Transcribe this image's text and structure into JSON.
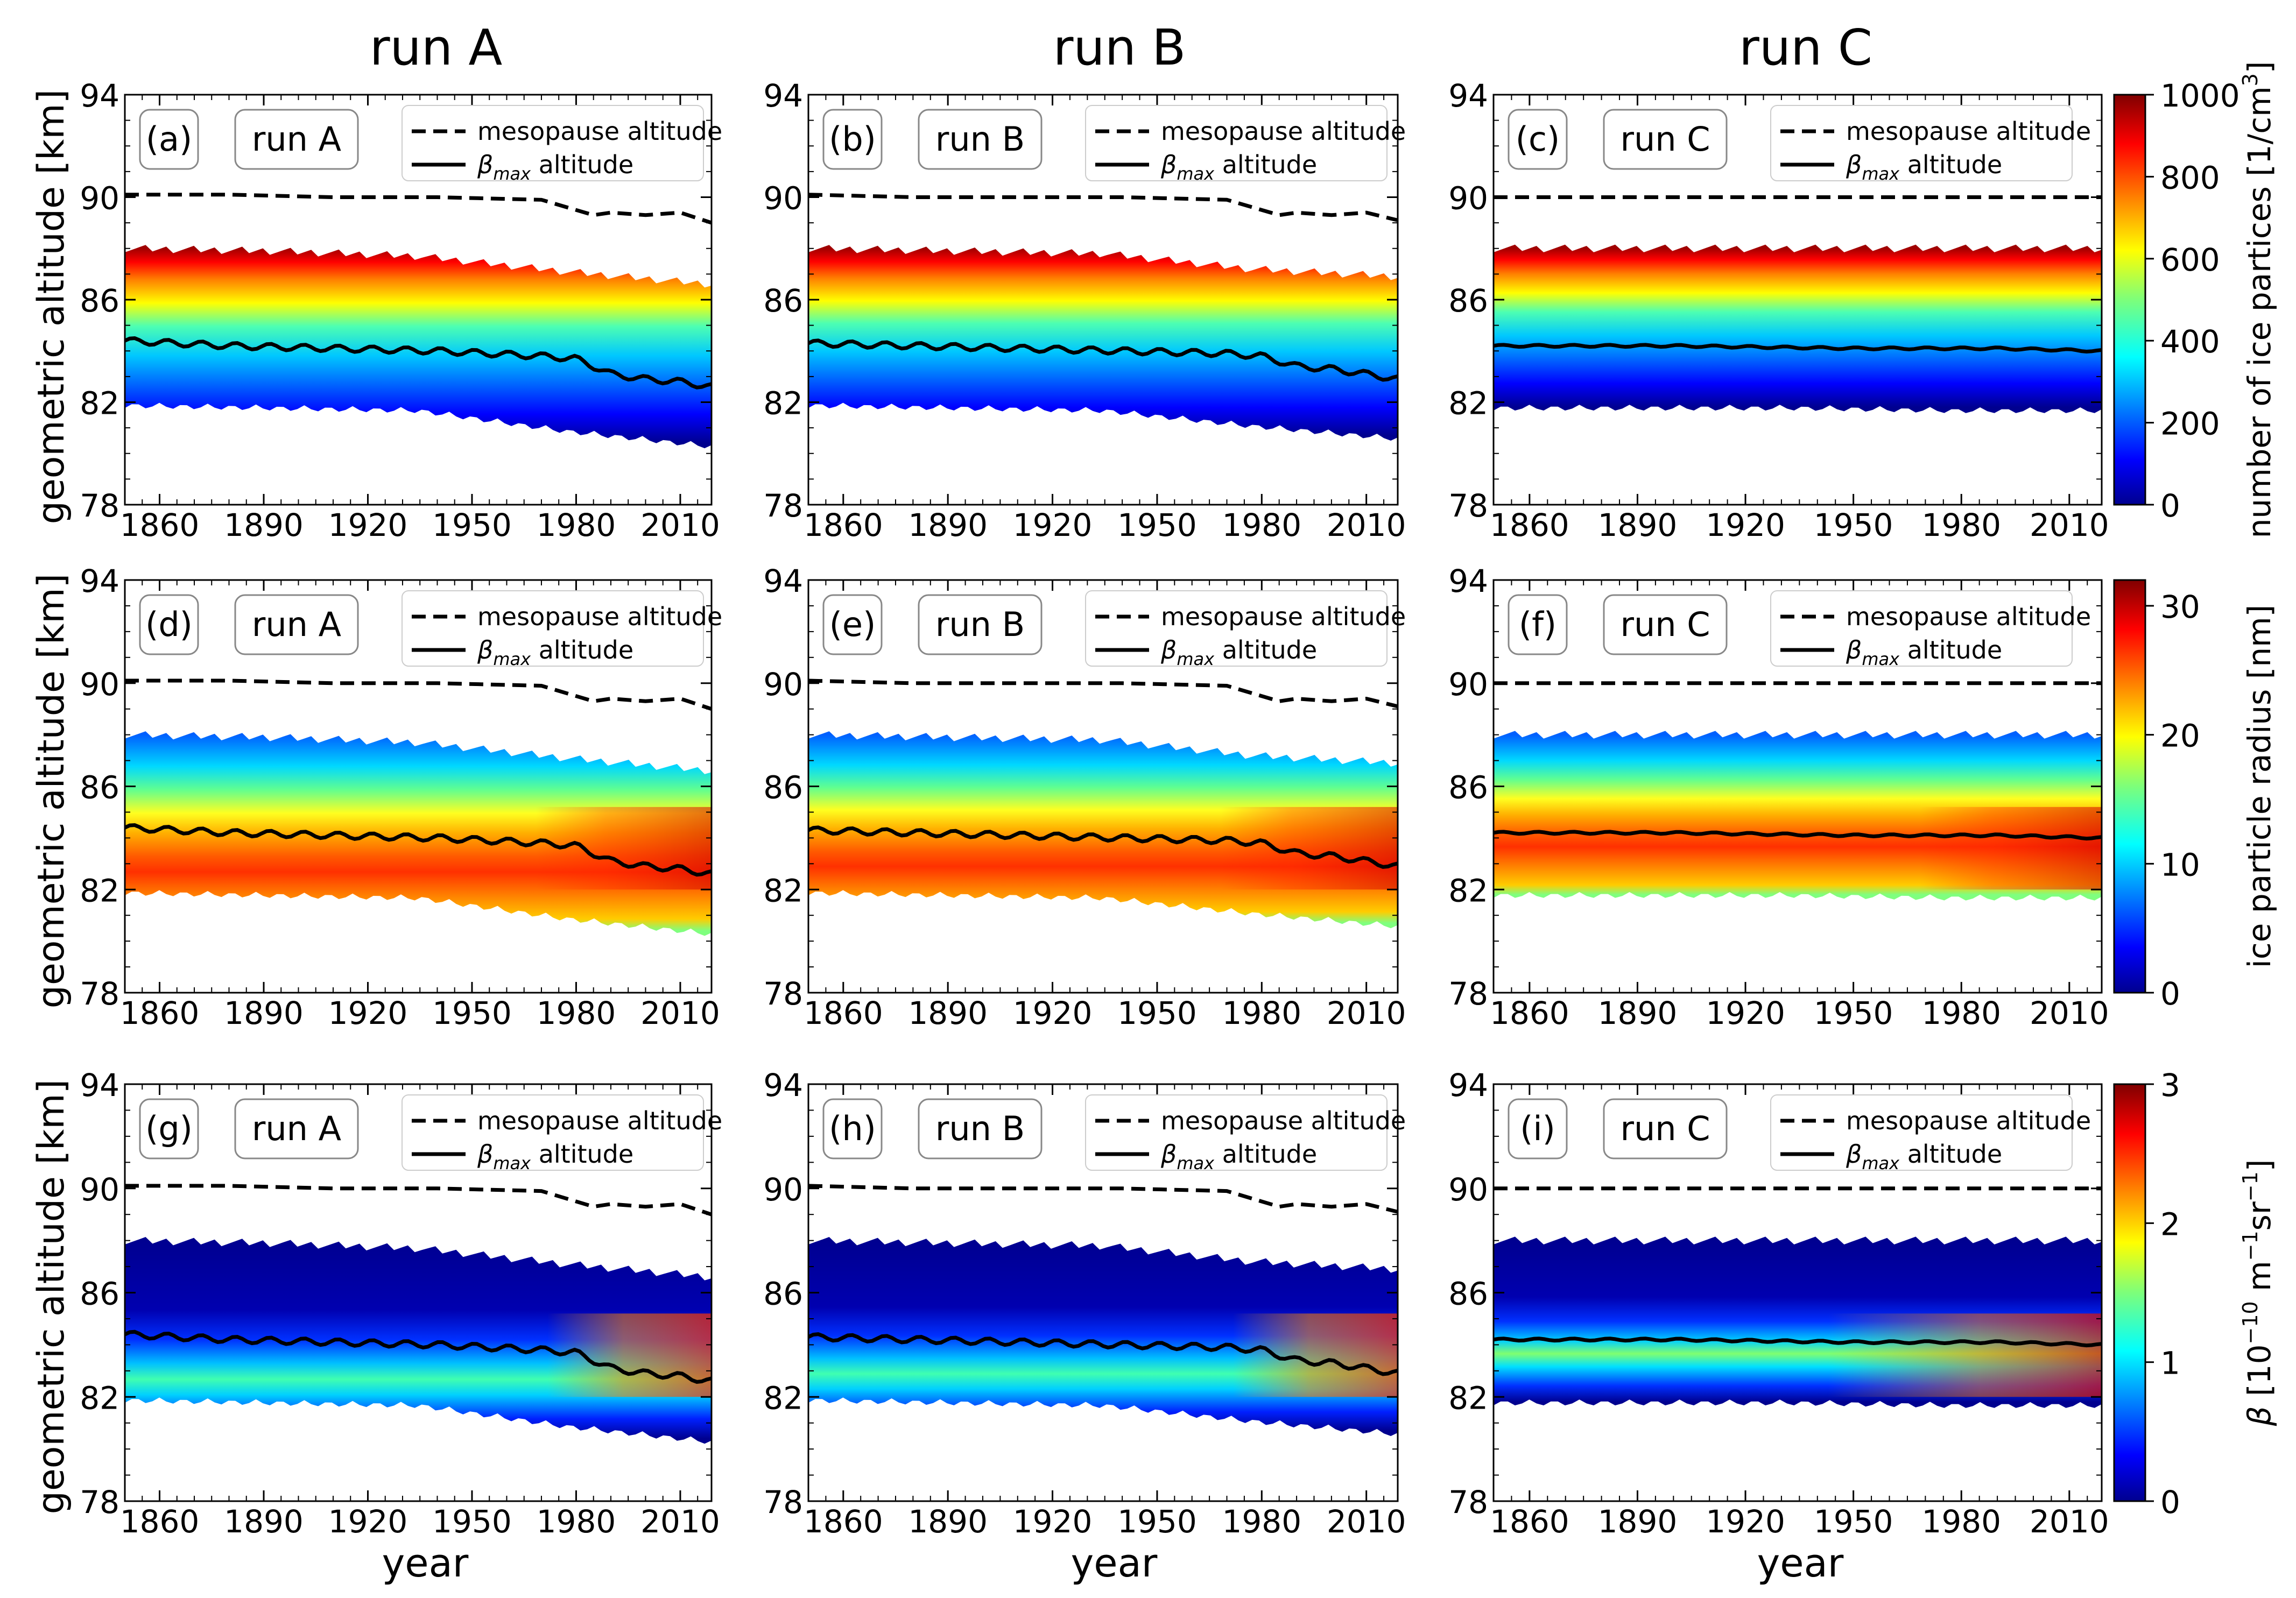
{
  "columns": [
    "run A",
    "run B",
    "run C"
  ],
  "xlabel": "year",
  "ylabel": "geometric altitude [km]",
  "legend": {
    "mesopause": "mesopause altitude",
    "beta_prefix": "β",
    "beta_sub": "max",
    "beta_suffix": " altitude"
  },
  "colors": {
    "colormap": "jet",
    "mesopause_line": "#000000",
    "beta_line": "#000000",
    "missing": "#ffffff"
  },
  "chart_data": [
    {
      "panel": "(a)",
      "run": "run A",
      "row": 0,
      "col": 0,
      "type": "heatmap",
      "quantity": "number of ice particles",
      "xlim": [
        1850,
        2019
      ],
      "ylim": [
        78,
        94
      ],
      "xticks": [
        1860,
        1890,
        1920,
        1950,
        1980,
        2010
      ],
      "yticks": [
        78,
        82,
        86,
        90,
        94
      ],
      "cloud_top": [
        88.0,
        87.9,
        87.7,
        87.1,
        86.6
      ],
      "cloud_bottom": [
        82.0,
        81.9,
        81.8,
        81.0,
        80.4
      ],
      "mesopause": {
        "x": [
          1850,
          1880,
          1910,
          1940,
          1970,
          1985,
          1990,
          2000,
          2010,
          2019
        ],
        "y": [
          90.1,
          90.1,
          90.0,
          90.0,
          89.9,
          89.3,
          89.4,
          89.3,
          89.4,
          89.0
        ]
      },
      "beta_max": {
        "x": [
          1850,
          1880,
          1910,
          1940,
          1970,
          1980,
          1990,
          2000,
          2010,
          2019
        ],
        "y": [
          84.4,
          84.2,
          84.1,
          84.0,
          83.8,
          83.7,
          83.1,
          82.9,
          82.8,
          82.6
        ]
      }
    },
    {
      "panel": "(b)",
      "run": "run B",
      "row": 0,
      "col": 1,
      "type": "heatmap",
      "quantity": "number of ice particles",
      "xlim": [
        1850,
        2019
      ],
      "ylim": [
        78,
        94
      ],
      "xticks": [
        1860,
        1890,
        1920,
        1950,
        1980,
        2010
      ],
      "yticks": [
        78,
        82,
        86,
        90,
        94
      ],
      "cloud_top": [
        88.0,
        87.9,
        87.8,
        87.2,
        86.9
      ],
      "cloud_bottom": [
        82.0,
        81.9,
        81.8,
        81.2,
        80.7
      ],
      "mesopause": {
        "x": [
          1850,
          1880,
          1910,
          1940,
          1970,
          1985,
          1990,
          2000,
          2010,
          2019
        ],
        "y": [
          90.1,
          90.0,
          90.0,
          90.0,
          89.9,
          89.3,
          89.4,
          89.3,
          89.4,
          89.1
        ]
      },
      "beta_max": {
        "x": [
          1850,
          1880,
          1910,
          1940,
          1970,
          1980,
          1990,
          2000,
          2010,
          2019
        ],
        "y": [
          84.3,
          84.2,
          84.1,
          84.0,
          83.9,
          83.8,
          83.4,
          83.3,
          83.1,
          82.9
        ]
      }
    },
    {
      "panel": "(c)",
      "run": "run C",
      "row": 0,
      "col": 2,
      "type": "heatmap",
      "quantity": "number of ice particles",
      "xlim": [
        1850,
        2019
      ],
      "ylim": [
        78,
        94
      ],
      "xticks": [
        1860,
        1890,
        1920,
        1950,
        1980,
        2010
      ],
      "yticks": [
        78,
        82,
        86,
        90,
        94
      ],
      "cloud_top": [
        88.0,
        88.0,
        88.0,
        88.0,
        88.0
      ],
      "cloud_bottom": [
        81.9,
        81.9,
        81.9,
        81.8,
        81.8
      ],
      "mesopause": {
        "x": [
          1850,
          2019
        ],
        "y": [
          90.0,
          90.0
        ]
      },
      "beta_max": {
        "x": [
          1850,
          1900,
          1950,
          1990,
          2019
        ],
        "y": [
          84.2,
          84.2,
          84.1,
          84.1,
          84.0
        ]
      }
    },
    {
      "panel": "(d)",
      "run": "run A",
      "row": 1,
      "col": 0,
      "type": "heatmap",
      "quantity": "ice particle radius",
      "xlim": [
        1850,
        2019
      ],
      "ylim": [
        78,
        94
      ],
      "xticks": [
        1860,
        1890,
        1920,
        1950,
        1980,
        2010
      ],
      "yticks": [
        78,
        82,
        86,
        90,
        94
      ],
      "cloud_top": [
        88.0,
        87.9,
        87.7,
        87.1,
        86.6
      ],
      "cloud_bottom": [
        82.0,
        81.9,
        81.8,
        81.0,
        80.4
      ],
      "mesopause": {
        "x": [
          1850,
          1880,
          1910,
          1940,
          1970,
          1985,
          1990,
          2000,
          2010,
          2019
        ],
        "y": [
          90.1,
          90.1,
          90.0,
          90.0,
          89.9,
          89.3,
          89.4,
          89.3,
          89.4,
          89.0
        ]
      },
      "beta_max": {
        "x": [
          1850,
          1880,
          1910,
          1940,
          1970,
          1980,
          1990,
          2000,
          2010,
          2019
        ],
        "y": [
          84.4,
          84.2,
          84.1,
          84.0,
          83.8,
          83.7,
          83.1,
          82.9,
          82.8,
          82.6
        ]
      }
    },
    {
      "panel": "(e)",
      "run": "run B",
      "row": 1,
      "col": 1,
      "type": "heatmap",
      "quantity": "ice particle radius",
      "xlim": [
        1850,
        2019
      ],
      "ylim": [
        78,
        94
      ],
      "xticks": [
        1860,
        1890,
        1920,
        1950,
        1980,
        2010
      ],
      "yticks": [
        78,
        82,
        86,
        90,
        94
      ],
      "cloud_top": [
        88.0,
        87.9,
        87.8,
        87.2,
        86.9
      ],
      "cloud_bottom": [
        82.0,
        81.9,
        81.8,
        81.2,
        80.7
      ],
      "mesopause": {
        "x": [
          1850,
          1880,
          1910,
          1940,
          1970,
          1985,
          1990,
          2000,
          2010,
          2019
        ],
        "y": [
          90.1,
          90.0,
          90.0,
          90.0,
          89.9,
          89.3,
          89.4,
          89.3,
          89.4,
          89.1
        ]
      },
      "beta_max": {
        "x": [
          1850,
          1880,
          1910,
          1940,
          1970,
          1980,
          1990,
          2000,
          2010,
          2019
        ],
        "y": [
          84.3,
          84.2,
          84.1,
          84.0,
          83.9,
          83.8,
          83.4,
          83.3,
          83.1,
          82.9
        ]
      }
    },
    {
      "panel": "(f)",
      "run": "run C",
      "row": 1,
      "col": 2,
      "type": "heatmap",
      "quantity": "ice particle radius",
      "xlim": [
        1850,
        2019
      ],
      "ylim": [
        78,
        94
      ],
      "xticks": [
        1860,
        1890,
        1920,
        1950,
        1980,
        2010
      ],
      "yticks": [
        78,
        82,
        86,
        90,
        94
      ],
      "cloud_top": [
        88.0,
        88.0,
        88.0,
        88.0,
        88.0
      ],
      "cloud_bottom": [
        81.9,
        81.9,
        81.9,
        81.8,
        81.8
      ],
      "mesopause": {
        "x": [
          1850,
          2019
        ],
        "y": [
          90.0,
          90.0
        ]
      },
      "beta_max": {
        "x": [
          1850,
          1900,
          1950,
          1990,
          2019
        ],
        "y": [
          84.2,
          84.2,
          84.1,
          84.1,
          84.0
        ]
      }
    },
    {
      "panel": "(g)",
      "run": "run A",
      "row": 2,
      "col": 0,
      "type": "heatmap",
      "quantity": "β",
      "xlim": [
        1850,
        2019
      ],
      "ylim": [
        78,
        94
      ],
      "xticks": [
        1860,
        1890,
        1920,
        1950,
        1980,
        2010
      ],
      "yticks": [
        78,
        82,
        86,
        90,
        94
      ],
      "cloud_top": [
        88.0,
        87.9,
        87.7,
        87.1,
        86.6
      ],
      "cloud_bottom": [
        82.0,
        81.9,
        81.8,
        81.0,
        80.4
      ],
      "mesopause": {
        "x": [
          1850,
          1880,
          1910,
          1940,
          1970,
          1985,
          1990,
          2000,
          2010,
          2019
        ],
        "y": [
          90.1,
          90.1,
          90.0,
          90.0,
          89.9,
          89.3,
          89.4,
          89.3,
          89.4,
          89.0
        ]
      },
      "beta_max": {
        "x": [
          1850,
          1880,
          1910,
          1940,
          1970,
          1980,
          1990,
          2000,
          2010,
          2019
        ],
        "y": [
          84.4,
          84.2,
          84.1,
          84.0,
          83.8,
          83.7,
          83.1,
          82.9,
          82.8,
          82.6
        ]
      }
    },
    {
      "panel": "(h)",
      "run": "run B",
      "row": 2,
      "col": 1,
      "type": "heatmap",
      "quantity": "β",
      "xlim": [
        1850,
        2019
      ],
      "ylim": [
        78,
        94
      ],
      "xticks": [
        1860,
        1890,
        1920,
        1950,
        1980,
        2010
      ],
      "yticks": [
        78,
        82,
        86,
        90,
        94
      ],
      "cloud_top": [
        88.0,
        87.9,
        87.8,
        87.2,
        86.9
      ],
      "cloud_bottom": [
        82.0,
        81.9,
        81.8,
        81.2,
        80.7
      ],
      "mesopause": {
        "x": [
          1850,
          1880,
          1910,
          1940,
          1970,
          1985,
          1990,
          2000,
          2010,
          2019
        ],
        "y": [
          90.1,
          90.0,
          90.0,
          90.0,
          89.9,
          89.3,
          89.4,
          89.3,
          89.4,
          89.1
        ]
      },
      "beta_max": {
        "x": [
          1850,
          1880,
          1910,
          1940,
          1970,
          1980,
          1990,
          2000,
          2010,
          2019
        ],
        "y": [
          84.3,
          84.2,
          84.1,
          84.0,
          83.9,
          83.8,
          83.4,
          83.3,
          83.1,
          82.9
        ]
      }
    },
    {
      "panel": "(i)",
      "run": "run C",
      "row": 2,
      "col": 2,
      "type": "heatmap",
      "quantity": "β",
      "xlim": [
        1850,
        2019
      ],
      "ylim": [
        78,
        94
      ],
      "xticks": [
        1860,
        1890,
        1920,
        1950,
        1980,
        2010
      ],
      "yticks": [
        78,
        82,
        86,
        90,
        94
      ],
      "cloud_top": [
        88.0,
        88.0,
        88.0,
        88.0,
        88.0
      ],
      "cloud_bottom": [
        81.9,
        81.9,
        81.9,
        81.8,
        81.8
      ],
      "mesopause": {
        "x": [
          1850,
          2019
        ],
        "y": [
          90.0,
          90.0
        ]
      },
      "beta_max": {
        "x": [
          1850,
          1900,
          1950,
          1990,
          2019
        ],
        "y": [
          84.2,
          84.2,
          84.1,
          84.1,
          84.0
        ]
      }
    }
  ],
  "colorbars": [
    {
      "row": 0,
      "label": "number of ice particles [1/cm³]",
      "label_main": "number of ice partices [1/cm",
      "label_sup": "3",
      "label_end": "]",
      "min": 0,
      "max": 1000,
      "ticks": [
        "0",
        "200",
        "400",
        "600",
        "800",
        "1000"
      ]
    },
    {
      "row": 1,
      "label": "ice particle radius [nm]",
      "label_main": "ice particle radius [nm]",
      "label_sup": "",
      "label_end": "",
      "min": 0,
      "max": 32,
      "ticks": [
        "0",
        "10",
        "20",
        "30"
      ],
      "tick_values": [
        0,
        10,
        20,
        30
      ]
    },
    {
      "row": 2,
      "label": "β [10⁻¹⁰ m⁻¹sr⁻¹]",
      "label_main": "β [10",
      "label_sup": "−10",
      "label_mid": " m",
      "label_sup2": "−1",
      "label_mid2": "sr",
      "label_sup3": "−1",
      "label_end": "]",
      "min": 0,
      "max": 3,
      "ticks": [
        "0",
        "1",
        "2",
        "3"
      ],
      "tick_values": [
        0,
        1,
        2,
        3
      ]
    }
  ]
}
